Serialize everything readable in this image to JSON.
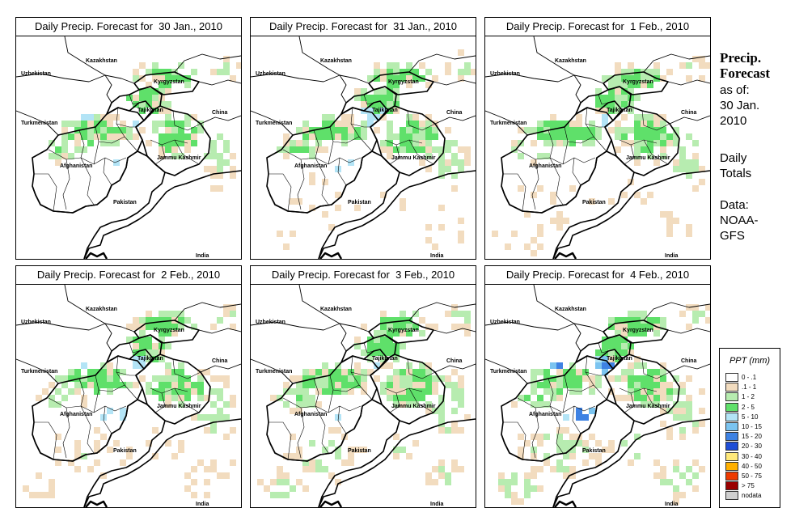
{
  "panels": [
    {
      "title": "Daily Precip. Forecast for  30 Jan., 2010",
      "seed": 11,
      "blue": 0.08,
      "extra": 0.0
    },
    {
      "title": "Daily Precip. Forecast for  31 Jan., 2010",
      "seed": 23,
      "blue": 0.14,
      "extra": 0.08
    },
    {
      "title": "Daily Precip. Forecast for  1 Feb., 2010",
      "seed": 37,
      "blue": 0.05,
      "extra": 0.1
    },
    {
      "title": "Daily Precip. Forecast for  2 Feb., 2010",
      "seed": 41,
      "blue": 0.12,
      "extra": 0.14
    },
    {
      "title": "Daily Precip. Forecast for  3 Feb., 2010",
      "seed": 53,
      "blue": 0.12,
      "extra": 0.18
    },
    {
      "title": "Daily Precip. Forecast for  4 Feb., 2010",
      "seed": 67,
      "blue": 0.3,
      "extra": 0.22
    }
  ],
  "map_labels": {
    "kazakhstan": "Kazakhstan",
    "uzbekistan": "Uzbekistan",
    "kyrgyzstan": "Kyrgyzstan",
    "tajikistan": "Tajikistan",
    "china": "China",
    "turkmenistan": "Turkmenistan",
    "jammu_kashmir": "Jammu Kashmir",
    "afghanistan": "Afghanistan",
    "pakistan": "Pakistan",
    "india": "India"
  },
  "side": {
    "title_line1": "Precip.",
    "title_line2": "Forecast",
    "asof_line1": "as of:",
    "asof_line2": "30 Jan.",
    "asof_line3": "2010",
    "totals_line1": "Daily",
    "totals_line2": "Totals",
    "data_line1": "Data:",
    "data_line2": "NOAA-",
    "data_line3": "GFS"
  },
  "legend": {
    "title": "PPT (mm)",
    "items": [
      {
        "label": "0 - .1",
        "color": "#ffffff"
      },
      {
        "label": ".1 - 1",
        "color": "#f2dcbf"
      },
      {
        "label": "1 - 2",
        "color": "#b7ecb0"
      },
      {
        "label": "2 - 5",
        "color": "#5fe06a"
      },
      {
        "label": "5 - 10",
        "color": "#b3e4f6"
      },
      {
        "label": "10 - 15",
        "color": "#7bc4f0"
      },
      {
        "label": "15 - 20",
        "color": "#3e82e3"
      },
      {
        "label": "20 - 30",
        "color": "#1f4ed6"
      },
      {
        "label": "30 - 40",
        "color": "#ffe97a"
      },
      {
        "label": "40 - 50",
        "color": "#ffb000"
      },
      {
        "label": "50 - 75",
        "color": "#ee3a00"
      },
      {
        "label": "> 75",
        "color": "#9a0000"
      },
      {
        "label": "nodata",
        "color": "#cfcfcf"
      }
    ]
  }
}
